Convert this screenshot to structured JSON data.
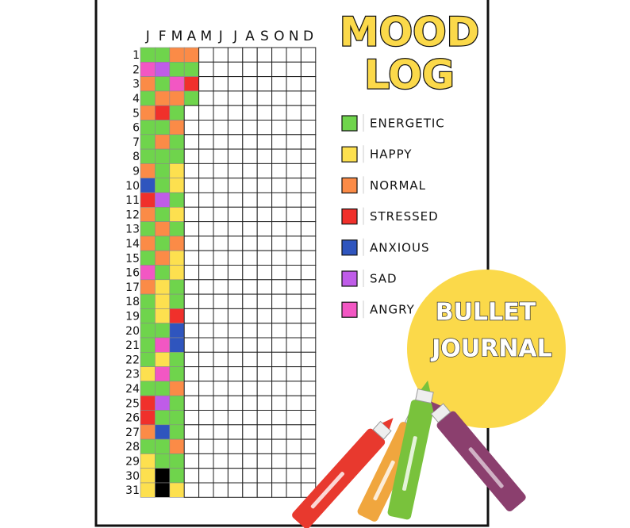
{
  "title": [
    "MOOD",
    "LOG"
  ],
  "months": [
    "J",
    "F",
    "M",
    "A",
    "M",
    "J",
    "J",
    "A",
    "S",
    "O",
    "N",
    "D"
  ],
  "legend": [
    {
      "label": "ENERGETIC",
      "color": "#6fd44c"
    },
    {
      "label": "HAPPY",
      "color": "#fde04f"
    },
    {
      "label": "NORMAL",
      "color": "#fb8b47"
    },
    {
      "label": "STRESSED",
      "color": "#f0302b"
    },
    {
      "label": "ANXIOUS",
      "color": "#2f55be"
    },
    {
      "label": "SAD",
      "color": "#bf5ce8"
    },
    {
      "label": "ANGRY",
      "color": "#f257c3"
    }
  ],
  "days": [
    {
      "label": "1",
      "moods": [
        0,
        0,
        2,
        2
      ]
    },
    {
      "label": "2",
      "moods": [
        6,
        5,
        0,
        0
      ]
    },
    {
      "label": "3",
      "moods": [
        2,
        0,
        6,
        3
      ]
    },
    {
      "label": "4",
      "moods": [
        0,
        2,
        2,
        0
      ]
    },
    {
      "label": "5",
      "moods": [
        2,
        3,
        0
      ]
    },
    {
      "label": "6",
      "moods": [
        0,
        0,
        2
      ]
    },
    {
      "label": "7",
      "moods": [
        0,
        2,
        0
      ]
    },
    {
      "label": "8",
      "moods": [
        0,
        0,
        0
      ]
    },
    {
      "label": "9",
      "moods": [
        2,
        0,
        1
      ]
    },
    {
      "label": "10",
      "moods": [
        4,
        0,
        1
      ]
    },
    {
      "label": "11",
      "moods": [
        3,
        5,
        0
      ]
    },
    {
      "label": "12",
      "moods": [
        2,
        0,
        1
      ]
    },
    {
      "label": "13",
      "moods": [
        0,
        2,
        0
      ]
    },
    {
      "label": "14",
      "moods": [
        2,
        0,
        2
      ]
    },
    {
      "label": "15",
      "moods": [
        0,
        2,
        1
      ]
    },
    {
      "label": "16",
      "moods": [
        6,
        0,
        1
      ]
    },
    {
      "label": "17",
      "moods": [
        2,
        1,
        0
      ]
    },
    {
      "label": "18",
      "moods": [
        0,
        1,
        0
      ]
    },
    {
      "label": "19",
      "moods": [
        0,
        1,
        3
      ]
    },
    {
      "label": "20",
      "moods": [
        0,
        0,
        4
      ]
    },
    {
      "label": "21",
      "moods": [
        0,
        6,
        4
      ]
    },
    {
      "label": "22",
      "moods": [
        0,
        1,
        0
      ]
    },
    {
      "label": "23",
      "moods": [
        1,
        6,
        0
      ]
    },
    {
      "label": "24",
      "moods": [
        0,
        0,
        2
      ]
    },
    {
      "label": "25",
      "moods": [
        3,
        5,
        0
      ]
    },
    {
      "label": "26",
      "moods": [
        3,
        0,
        0
      ]
    },
    {
      "label": "27",
      "moods": [
        2,
        4,
        0
      ]
    },
    {
      "label": "28",
      "moods": [
        0,
        0,
        2
      ]
    },
    {
      "label": "29",
      "moods": [
        1,
        0,
        0
      ]
    },
    {
      "label": "30",
      "moods": [
        1,
        null,
        0
      ]
    },
    {
      "label": "31",
      "moods": [
        1,
        null,
        1
      ]
    }
  ],
  "badge": [
    "BULLET",
    "JOURNAL"
  ]
}
